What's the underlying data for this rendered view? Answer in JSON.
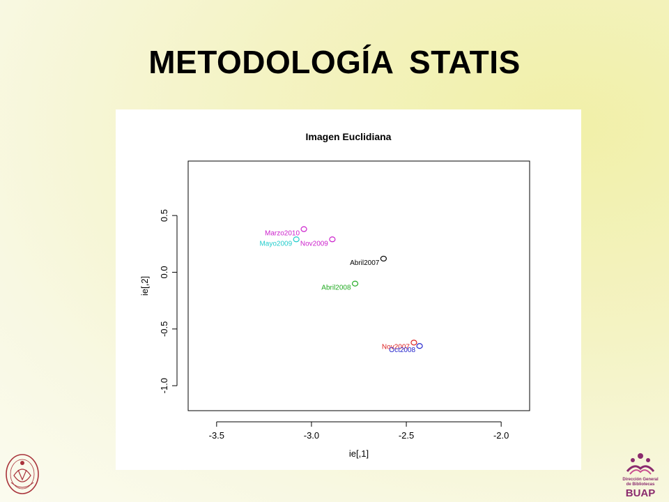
{
  "slide": {
    "title": "METODOLOGÍA  STATIS"
  },
  "chart_data": {
    "type": "scatter",
    "title": "Imagen Euclidiana",
    "xlabel": "ie[,1]",
    "ylabel": "ie[,2]",
    "xlim": [
      -3.65,
      -1.85
    ],
    "ylim": [
      -1.22,
      0.98
    ],
    "xticks": [
      -3.5,
      -3.0,
      -2.5,
      -2.0
    ],
    "xtick_labels": [
      "-3.5",
      "-3.0",
      "-2.5",
      "-2.0"
    ],
    "yticks": [
      -1.0,
      -0.5,
      0.0,
      0.5
    ],
    "ytick_labels": [
      "-1.0",
      "-0.5",
      "0.0",
      "0.5"
    ],
    "grid": false,
    "points": [
      {
        "label": "Marzo2010",
        "x": -3.04,
        "y": 0.38,
        "color": "#cc22cc"
      },
      {
        "label": "Mayo2009",
        "x": -3.08,
        "y": 0.29,
        "color": "#22cccc"
      },
      {
        "label": "Nov2009",
        "x": -2.89,
        "y": 0.29,
        "color": "#cc22cc"
      },
      {
        "label": "Abril2007",
        "x": -2.62,
        "y": 0.12,
        "color": "#000000"
      },
      {
        "label": "Abril2008",
        "x": -2.77,
        "y": -0.1,
        "color": "#22aa22"
      },
      {
        "label": "Nov2007",
        "x": -2.46,
        "y": -0.62,
        "color": "#dd2222"
      },
      {
        "label": "Oct2008",
        "x": -2.43,
        "y": -0.65,
        "color": "#2222cc"
      }
    ]
  },
  "logos": {
    "left_text": "BENEMERITA",
    "right_text": "BUAP",
    "right_lines": [
      "Dirección General",
      "de Bibliotecas"
    ]
  }
}
